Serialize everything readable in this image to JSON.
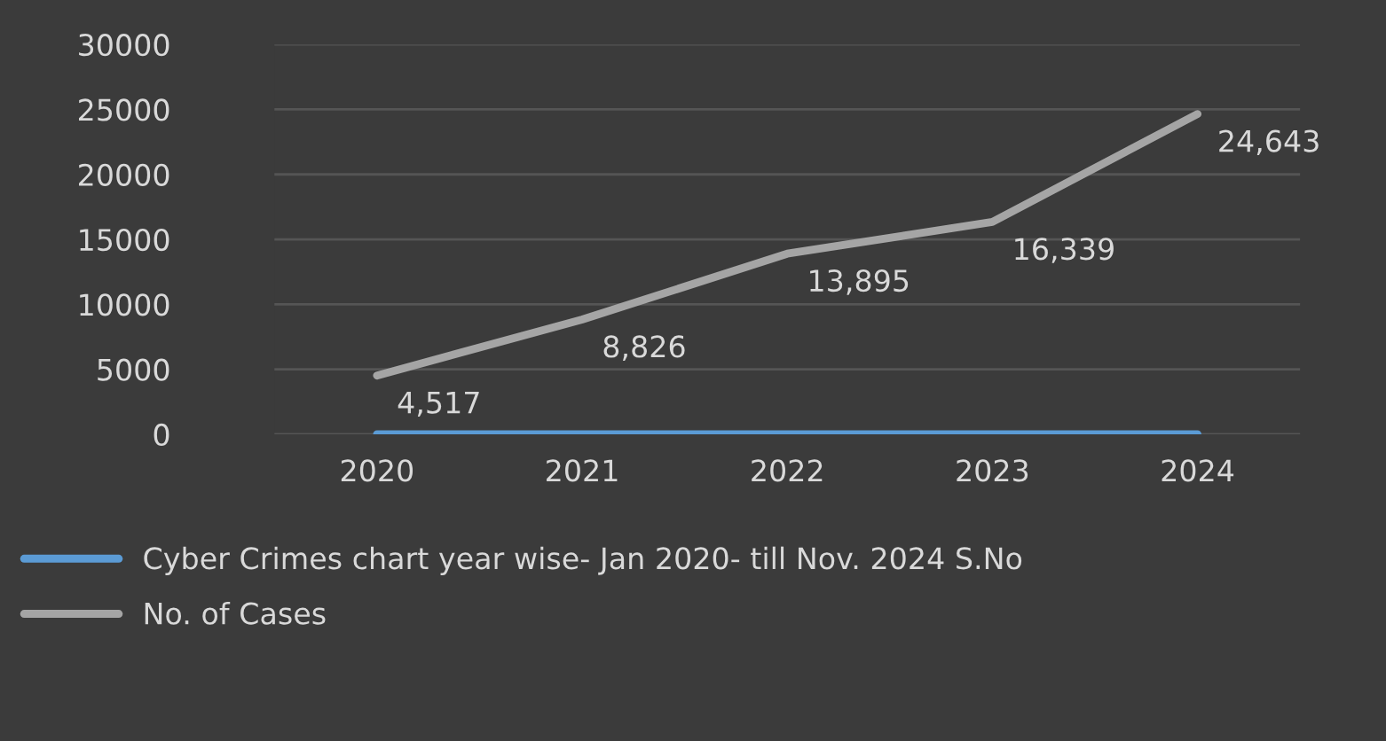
{
  "chart_data": {
    "type": "line",
    "categories": [
      "2020",
      "2021",
      "2022",
      "2023",
      "2024"
    ],
    "series": [
      {
        "name": "Cyber Crimes chart year wise- Jan 2020- till Nov. 2024 S.No",
        "color": "#5b9bd5",
        "values": [
          0,
          0,
          0,
          0,
          0
        ]
      },
      {
        "name": "No. of Cases",
        "color": "#a5a5a5",
        "values": [
          4517,
          8826,
          13895,
          16339,
          24643
        ],
        "value_labels": [
          "4,517",
          "8,826",
          "13,895",
          "16,339",
          "24,643"
        ]
      }
    ],
    "ylim": [
      0,
      30000
    ],
    "yticks": [
      0,
      5000,
      10000,
      15000,
      20000,
      25000,
      30000
    ],
    "grid": "y",
    "legend": "bottom",
    "marker": "none",
    "line_style": "solid"
  }
}
